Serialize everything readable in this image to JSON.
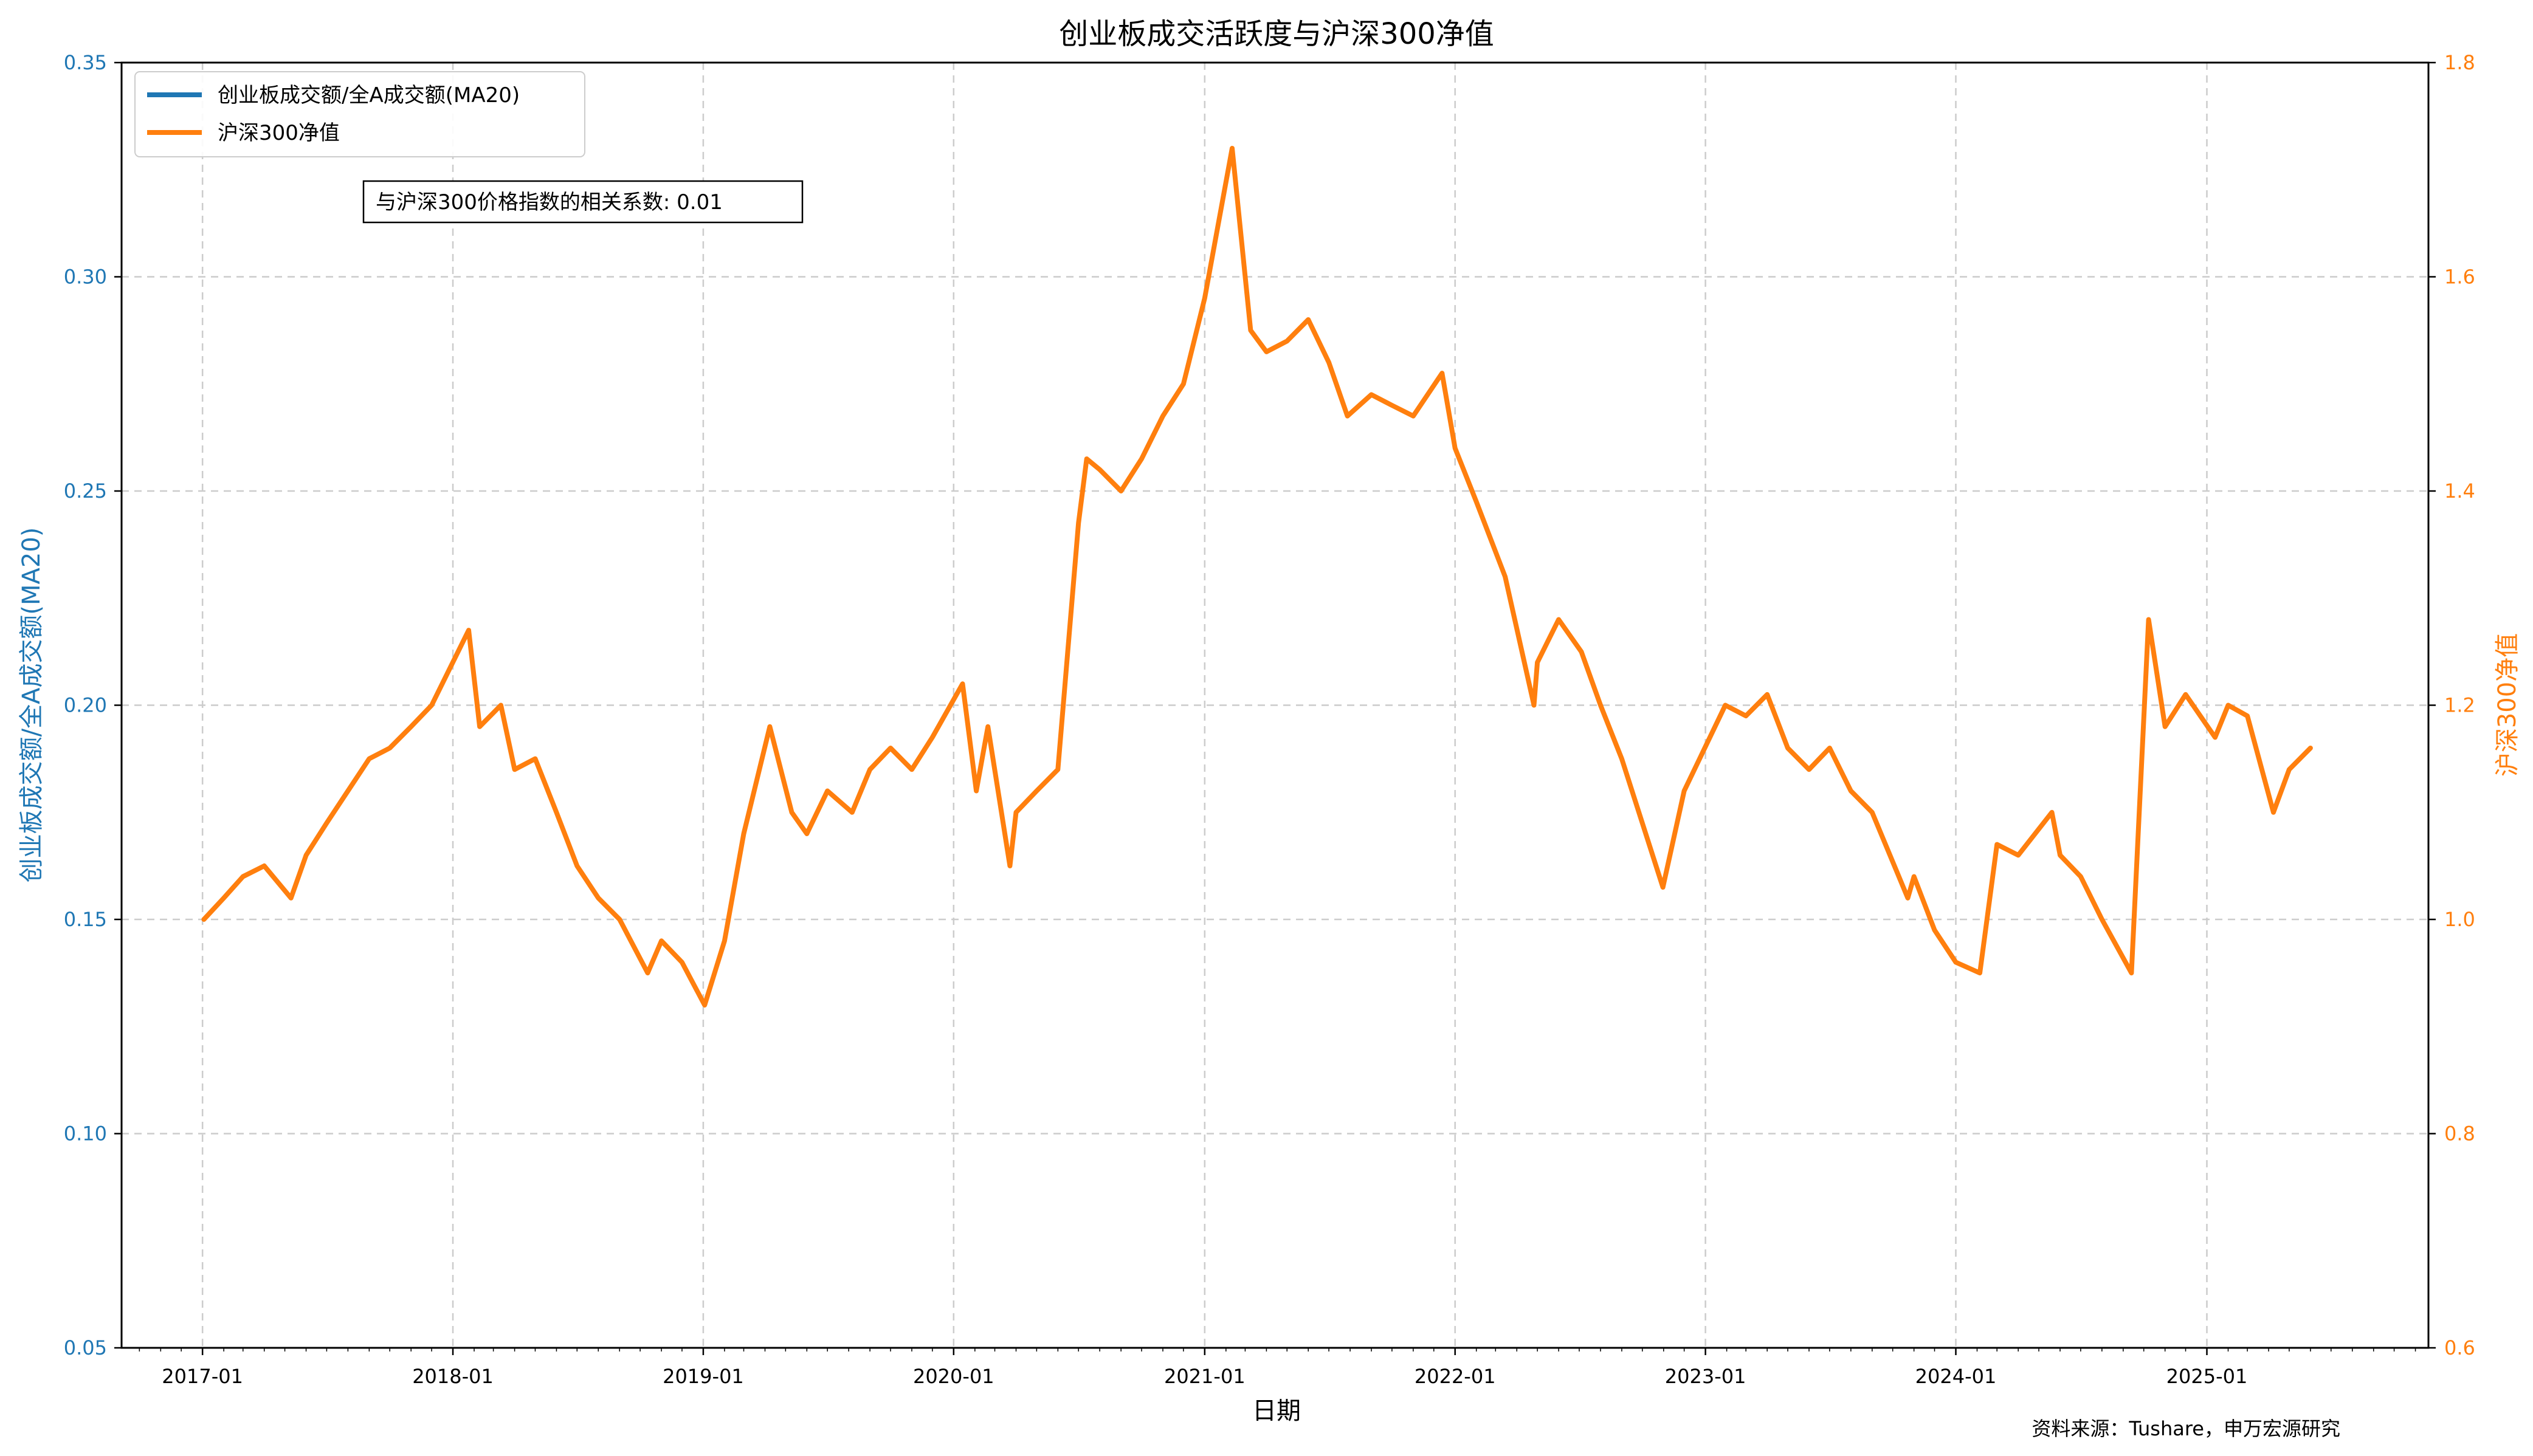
{
  "chart_data": {
    "type": "line",
    "title": "创业板成交活跃度与沪深300净值",
    "xlabel": "日期",
    "ylabel_left": "创业板成交额/全A成交额(MA20)",
    "ylabel_right": "沪深300净值",
    "ylim_left": [
      0.05,
      0.35
    ],
    "ylim_right": [
      0.6,
      1.8
    ],
    "yticks_left": [
      "0.05",
      "0.10",
      "0.15",
      "0.20",
      "0.25",
      "0.30",
      "0.35"
    ],
    "yticks_right": [
      "0.6",
      "0.8",
      "1.0",
      "1.2",
      "1.4",
      "1.6",
      "1.8"
    ],
    "xticks": [
      "2017-01",
      "2018-01",
      "2019-01",
      "2020-01",
      "2021-01",
      "2022-01",
      "2023-01",
      "2024-01",
      "2025-01"
    ],
    "grid": true,
    "legend_position": "top-left",
    "annotation": "与沪深300价格指数的相关系数: 0.01",
    "source": "资料来源：Tushare，申万宏源研究",
    "colors": {
      "left_series": "#1f77b4",
      "right_series": "#ff7f0e"
    },
    "series": [
      {
        "name": "创业板成交额/全A成交额(MA20)",
        "axis": "left",
        "x": [],
        "y": []
      },
      {
        "name": "沪深300净值",
        "axis": "right",
        "x": [
          "2017-01-03",
          "2017-02-01",
          "2017-03-01",
          "2017-04-01",
          "2017-05-10",
          "2017-06-01",
          "2017-07-01",
          "2017-08-01",
          "2017-09-01",
          "2017-10-01",
          "2017-11-01",
          "2017-12-01",
          "2018-01-24",
          "2018-02-09",
          "2018-03-12",
          "2018-04-01",
          "2018-05-01",
          "2018-06-01",
          "2018-07-01",
          "2018-08-01",
          "2018-09-01",
          "2018-10-12",
          "2018-11-01",
          "2018-12-01",
          "2019-01-03",
          "2019-02-01",
          "2019-03-01",
          "2019-04-08",
          "2019-05-10",
          "2019-06-01",
          "2019-07-01",
          "2019-08-06",
          "2019-09-01",
          "2019-10-01",
          "2019-11-01",
          "2019-12-01",
          "2020-01-14",
          "2020-02-03",
          "2020-02-20",
          "2020-03-23",
          "2020-04-01",
          "2020-05-01",
          "2020-06-01",
          "2020-07-01",
          "2020-07-13",
          "2020-08-01",
          "2020-09-01",
          "2020-10-01",
          "2020-11-01",
          "2020-12-01",
          "2021-01-01",
          "2021-02-10",
          "2021-03-09",
          "2021-04-01",
          "2021-05-01",
          "2021-06-01",
          "2021-07-01",
          "2021-07-28",
          "2021-09-01",
          "2021-10-01",
          "2021-11-01",
          "2021-12-13",
          "2022-01-01",
          "2022-02-01",
          "2022-03-15",
          "2022-04-26",
          "2022-05-01",
          "2022-06-01",
          "2022-07-04",
          "2022-08-01",
          "2022-09-01",
          "2022-10-31",
          "2022-12-01",
          "2023-01-30",
          "2023-03-01",
          "2023-04-01",
          "2023-05-01",
          "2023-06-01",
          "2023-07-01",
          "2023-08-01",
          "2023-09-01",
          "2023-10-23",
          "2023-11-01",
          "2023-12-01",
          "2024-01-01",
          "2024-02-05",
          "2024-03-01",
          "2024-04-01",
          "2024-05-20",
          "2024-06-01",
          "2024-07-01",
          "2024-08-01",
          "2024-09-13",
          "2024-10-08",
          "2024-11-01",
          "2024-12-01",
          "2025-01-13",
          "2025-02-01",
          "2025-03-01",
          "2025-04-08",
          "2025-05-01",
          "2025-06-01"
        ],
        "y": [
          1.0,
          1.02,
          1.04,
          1.05,
          1.02,
          1.06,
          1.09,
          1.12,
          1.15,
          1.16,
          1.18,
          1.2,
          1.27,
          1.18,
          1.2,
          1.14,
          1.15,
          1.1,
          1.05,
          1.02,
          1.0,
          0.95,
          0.98,
          0.96,
          0.92,
          0.98,
          1.08,
          1.18,
          1.1,
          1.08,
          1.12,
          1.1,
          1.14,
          1.16,
          1.14,
          1.17,
          1.22,
          1.12,
          1.18,
          1.05,
          1.1,
          1.12,
          1.14,
          1.37,
          1.43,
          1.42,
          1.4,
          1.43,
          1.47,
          1.5,
          1.58,
          1.72,
          1.55,
          1.53,
          1.54,
          1.56,
          1.52,
          1.47,
          1.49,
          1.48,
          1.47,
          1.51,
          1.44,
          1.39,
          1.32,
          1.2,
          1.24,
          1.28,
          1.25,
          1.2,
          1.15,
          1.03,
          1.12,
          1.2,
          1.19,
          1.21,
          1.16,
          1.14,
          1.16,
          1.12,
          1.1,
          1.02,
          1.04,
          0.99,
          0.96,
          0.95,
          1.07,
          1.06,
          1.1,
          1.06,
          1.04,
          1.0,
          0.95,
          1.28,
          1.18,
          1.21,
          1.17,
          1.2,
          1.19,
          1.1,
          1.14,
          1.16
        ]
      }
    ]
  }
}
